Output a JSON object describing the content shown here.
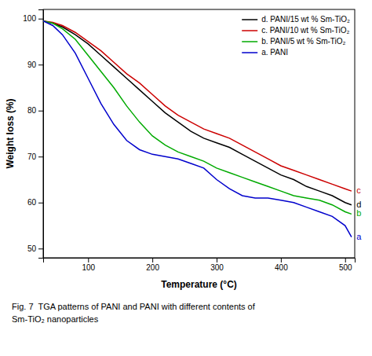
{
  "chart_data": {
    "type": "line",
    "xlabel": "Temperature (°C)",
    "ylabel": "Weight loss (%)",
    "xlim": [
      30,
      515
    ],
    "ylim": [
      48,
      102
    ],
    "xticks": [
      100,
      200,
      300,
      400,
      500
    ],
    "yticks": [
      50,
      60,
      70,
      80,
      90,
      100
    ],
    "legend": "upper right",
    "x": [
      30,
      45,
      60,
      80,
      100,
      120,
      140,
      160,
      180,
      200,
      220,
      240,
      260,
      280,
      300,
      320,
      340,
      360,
      380,
      400,
      420,
      440,
      460,
      480,
      500,
      510
    ],
    "series": [
      {
        "name": "d. PANI/15 wt % Sm-TiO₂",
        "color": "#000000",
        "values": [
          99.5,
          99.0,
          98.2,
          96.5,
          94.5,
          92.0,
          89.5,
          87.0,
          84.5,
          82.0,
          79.5,
          77.5,
          75.5,
          74.0,
          73.0,
          72.0,
          70.5,
          69.0,
          67.5,
          66.0,
          65.0,
          63.5,
          62.5,
          61.5,
          60.0,
          59.5
        ]
      },
      {
        "name": "c. PANI/10 wt % Sm-TiO₂",
        "color": "#cc0000",
        "values": [
          99.5,
          99.2,
          98.5,
          97.0,
          95.0,
          93.0,
          90.5,
          88.0,
          86.0,
          83.5,
          81.0,
          79.0,
          77.5,
          76.0,
          75.0,
          74.0,
          72.5,
          71.0,
          69.5,
          68.0,
          67.0,
          66.0,
          65.0,
          64.0,
          63.0,
          62.5
        ]
      },
      {
        "name": "b. PANI/5 wt % Sm-TiO₂",
        "color": "#00aa00",
        "values": [
          99.5,
          99.0,
          97.8,
          95.5,
          92.0,
          88.5,
          85.0,
          81.0,
          77.5,
          74.5,
          72.5,
          71.0,
          70.0,
          69.0,
          67.5,
          66.5,
          65.5,
          64.5,
          63.5,
          62.5,
          61.5,
          61.0,
          60.5,
          59.5,
          58.0,
          57.5
        ]
      },
      {
        "name": "a. PANI",
        "color": "#0000cc",
        "values": [
          99.5,
          98.5,
          96.5,
          92.5,
          87.0,
          81.5,
          77.0,
          73.5,
          71.5,
          70.5,
          70.0,
          69.5,
          68.5,
          67.5,
          65.0,
          63.0,
          61.5,
          61.0,
          61.0,
          60.5,
          60.0,
          59.0,
          58.0,
          57.0,
          55.0,
          52.5
        ]
      }
    ],
    "annotations": [
      {
        "text": "c",
        "color": "#cc0000",
        "x": 513,
        "y": 62.5
      },
      {
        "text": "d",
        "color": "#000000",
        "x": 513,
        "y": 59.5
      },
      {
        "text": "b",
        "color": "#00aa00",
        "x": 513,
        "y": 57.5
      },
      {
        "text": "a",
        "color": "#0000cc",
        "x": 513,
        "y": 52.5
      }
    ],
    "caption": "Fig. 7  TGA patterns of PANI and PANI with different contents of\nSm-TiO₂ nanoparticles"
  }
}
